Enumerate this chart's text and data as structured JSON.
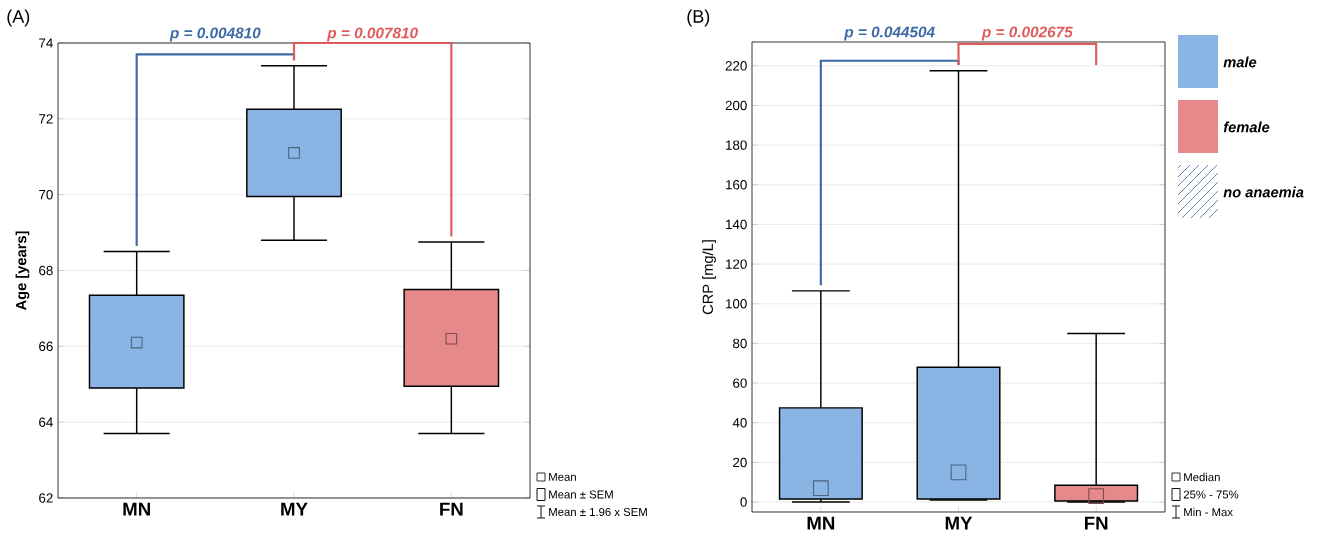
{
  "chart_data": [
    {
      "type": "box",
      "title": "(A)",
      "ylabel": "Age [years]",
      "categories": [
        "MN",
        "MY",
        "FN"
      ],
      "ylim": [
        62,
        74
      ],
      "yticks": [
        62,
        64,
        66,
        68,
        70,
        72,
        74
      ],
      "grid": "y",
      "series": [
        {
          "color": "#8ab4e4",
          "boxes": [
            {
              "low": 63.7,
              "q1": 64.9,
              "median": 66.1,
              "q3": 67.35,
              "high": 68.5
            },
            {
              "low": 68.8,
              "q1": 69.95,
              "median": 71.1,
              "q3": 72.25,
              "high": 73.4
            },
            null
          ]
        },
        {
          "color": "#e5898a",
          "boxes": [
            null,
            null,
            {
              "low": 63.7,
              "q1": 64.95,
              "median": 66.2,
              "q3": 67.5,
              "high": 68.75
            }
          ]
        }
      ],
      "annotations": [
        "p = 0.004810",
        "p = 0.007810",
        "Mean",
        "Mean ± SEM",
        "Mean ± 1.96 x SEM"
      ]
    },
    {
      "type": "box",
      "title": "(B)",
      "ylabel": "CRP [mg/L]",
      "categories": [
        "MN",
        "MY",
        "FN"
      ],
      "ylim": [
        -5,
        232
      ],
      "yticks": [
        0,
        20,
        40,
        60,
        80,
        100,
        120,
        140,
        160,
        180,
        200,
        220
      ],
      "grid": "y",
      "legend": "right",
      "series": [
        {
          "name": "male",
          "color": "#8ab4e4",
          "boxes": [
            {
              "low": 0,
              "q1": 1.5,
              "median": 7,
              "q3": 47.5,
              "high": 106.5
            },
            {
              "low": 1,
              "q1": 1.5,
              "median": 15,
              "q3": 68,
              "high": 217.5
            },
            null
          ]
        },
        {
          "name": "female",
          "color": "#e5898a",
          "boxes": [
            null,
            null,
            {
              "low": 0,
              "q1": 0.5,
              "median": 3,
              "q3": 8.5,
              "high": 85
            }
          ]
        }
      ],
      "annotations": [
        "p = 0.044504",
        "p = 0.002675",
        "no anaemia",
        "Median",
        "25% - 75%",
        "Min - Max"
      ]
    }
  ]
}
